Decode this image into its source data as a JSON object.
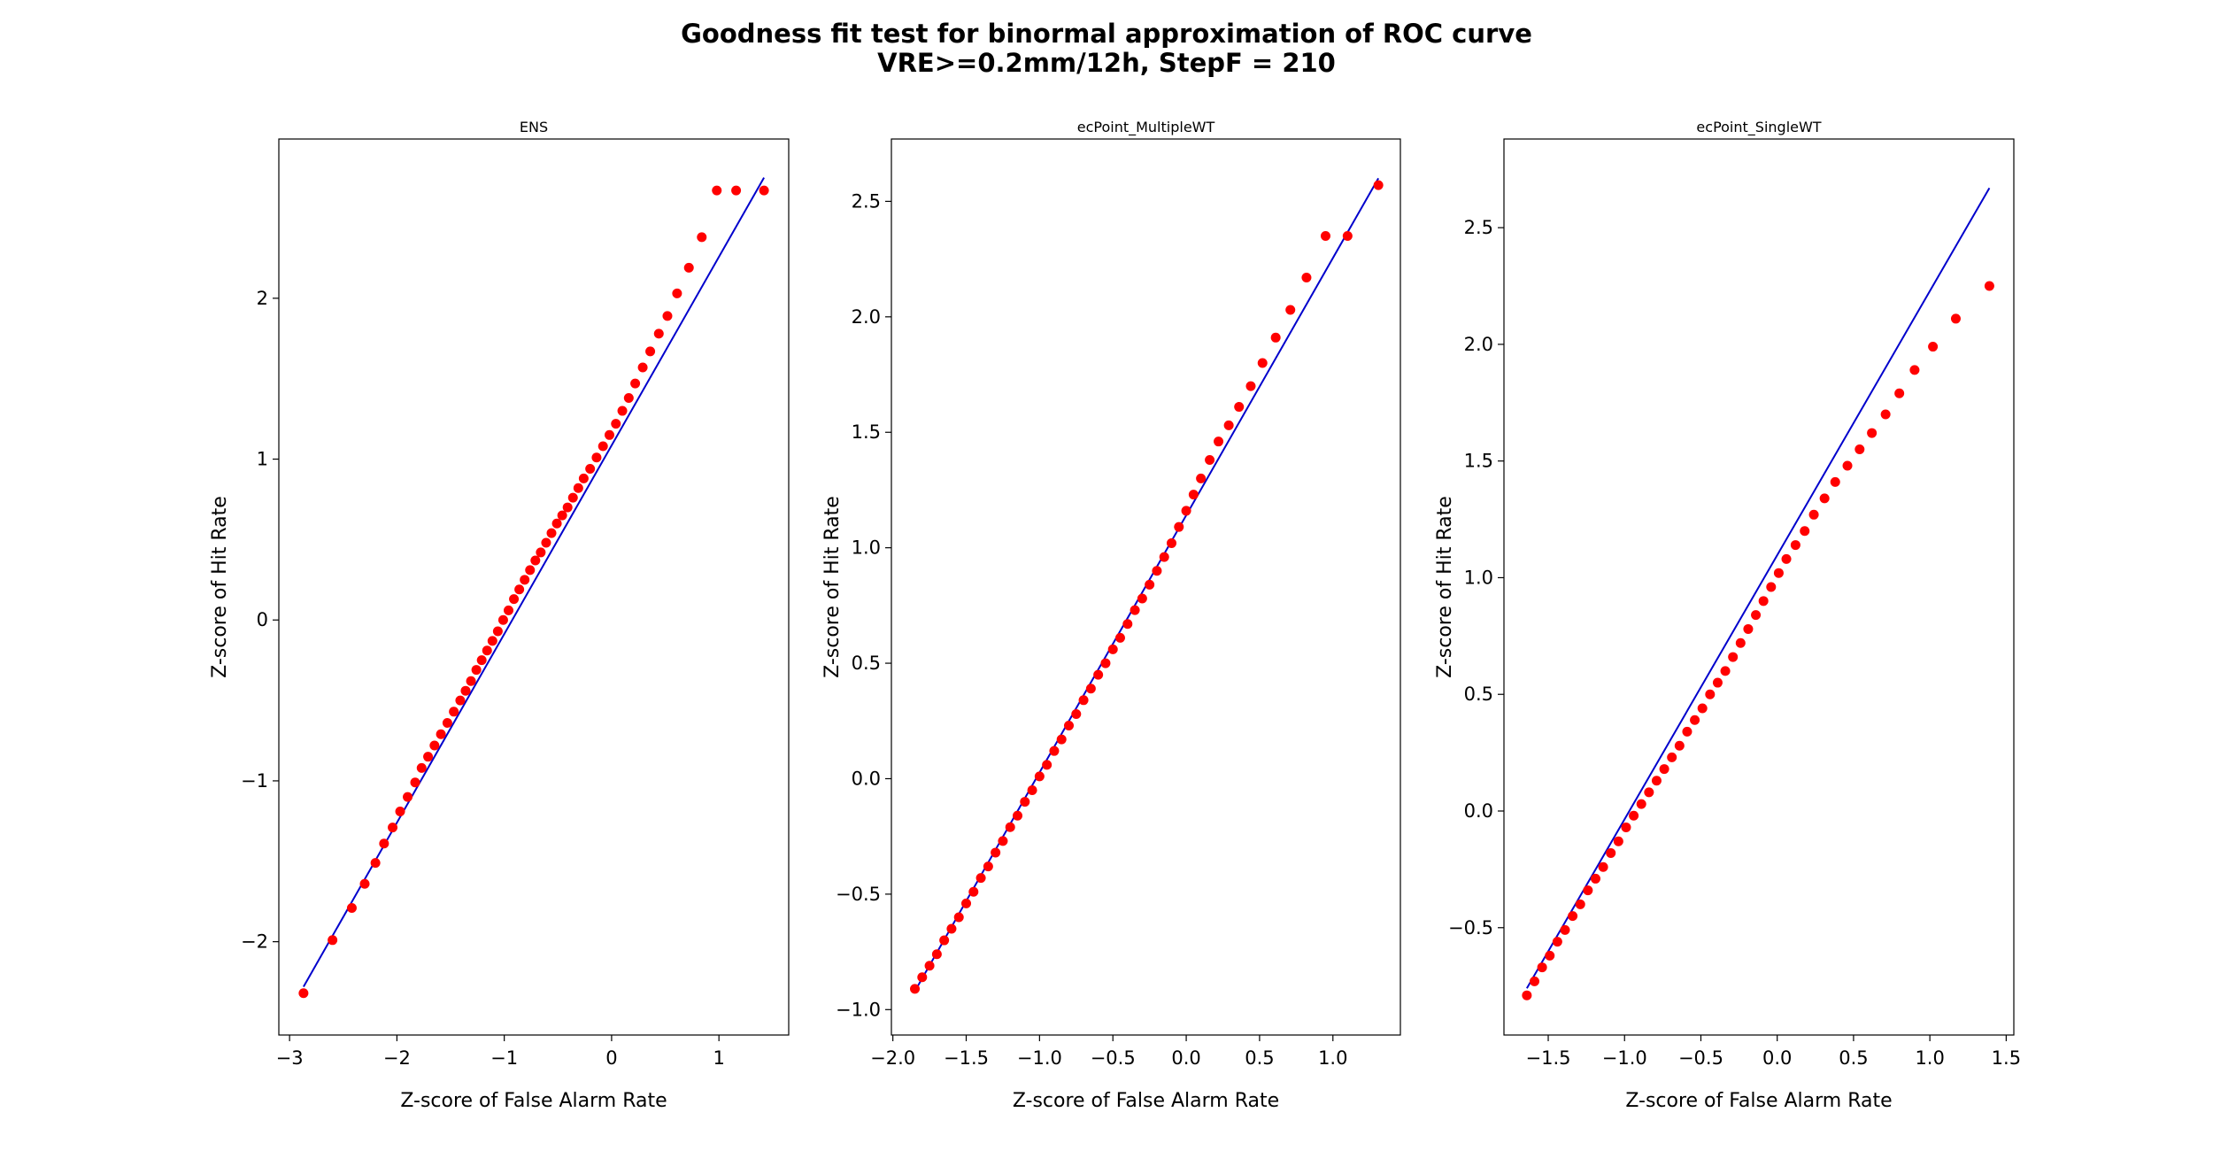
{
  "figure": {
    "title_line1": "Goodness fit test for binormal approximation of ROC curve",
    "title_line2": "VRE>=0.2mm/12h, StepF = 210",
    "line_color": "#0000cc",
    "marker_color": "#ff0000"
  },
  "chart_data": [
    {
      "type": "scatter",
      "title": "ENS",
      "xlabel": "Z-score of False Alarm Rate",
      "ylabel": "Z-score of Hit Rate",
      "xlim": [
        -3.1,
        1.65
      ],
      "ylim": [
        -2.58,
        2.99
      ],
      "xticks": [
        -3,
        -2,
        -1,
        0,
        1
      ],
      "xtick_labels": [
        "−3",
        "−2",
        "−1",
        "0",
        "1"
      ],
      "yticks": [
        -2,
        -1,
        0,
        1,
        2
      ],
      "ytick_labels": [
        "−2",
        "−1",
        "0",
        "1",
        "2"
      ],
      "fit_line": {
        "x": [
          -2.87,
          1.42
        ],
        "y": [
          -2.28,
          2.75
        ]
      },
      "points": {
        "x": [
          -2.87,
          -2.6,
          -2.42,
          -2.3,
          -2.2,
          -2.12,
          -2.04,
          -1.97,
          -1.9,
          -1.83,
          -1.77,
          -1.71,
          -1.65,
          -1.59,
          -1.53,
          -1.47,
          -1.41,
          -1.36,
          -1.31,
          -1.26,
          -1.21,
          -1.16,
          -1.11,
          -1.06,
          -1.01,
          -0.96,
          -0.91,
          -0.86,
          -0.81,
          -0.76,
          -0.71,
          -0.66,
          -0.61,
          -0.56,
          -0.51,
          -0.46,
          -0.41,
          -0.36,
          -0.31,
          -0.26,
          -0.2,
          -0.14,
          -0.08,
          -0.02,
          0.04,
          0.1,
          0.16,
          0.22,
          0.29,
          0.36,
          0.44,
          0.52,
          0.61,
          0.72,
          0.84,
          0.98,
          1.16,
          1.42
        ],
        "y": [
          -2.32,
          -1.99,
          -1.79,
          -1.64,
          -1.51,
          -1.39,
          -1.29,
          -1.19,
          -1.1,
          -1.01,
          -0.92,
          -0.85,
          -0.78,
          -0.71,
          -0.64,
          -0.57,
          -0.5,
          -0.44,
          -0.38,
          -0.31,
          -0.25,
          -0.19,
          -0.13,
          -0.07,
          0.0,
          0.06,
          0.13,
          0.19,
          0.25,
          0.31,
          0.37,
          0.42,
          0.48,
          0.54,
          0.6,
          0.65,
          0.7,
          0.76,
          0.82,
          0.88,
          0.94,
          1.01,
          1.08,
          1.15,
          1.22,
          1.3,
          1.38,
          1.47,
          1.57,
          1.67,
          1.78,
          1.89,
          2.03,
          2.19,
          2.38,
          2.67,
          2.67,
          2.67
        ]
      }
    },
    {
      "type": "scatter",
      "title": "ecPoint_MultipleWT",
      "xlabel": "Z-score of False Alarm Rate",
      "ylabel": "Z-score of Hit Rate",
      "xlim": [
        -2.01,
        1.46
      ],
      "ylim": [
        -1.11,
        2.77
      ],
      "xticks": [
        -2.0,
        -1.5,
        -1.0,
        -0.5,
        0.0,
        0.5,
        1.0
      ],
      "xtick_labels": [
        "−2.0",
        "−1.5",
        "−1.0",
        "−0.5",
        "0.0",
        "0.5",
        "1.0"
      ],
      "yticks": [
        -1.0,
        -0.5,
        0.0,
        0.5,
        1.0,
        1.5,
        2.0,
        2.5
      ],
      "ytick_labels": [
        "−1.0",
        "−0.5",
        "0.0",
        "0.5",
        "1.0",
        "1.5",
        "2.0",
        "2.5"
      ],
      "fit_line": {
        "x": [
          -1.85,
          1.31
        ],
        "y": [
          -0.92,
          2.6
        ]
      },
      "points": {
        "x": [
          -1.85,
          -1.8,
          -1.75,
          -1.7,
          -1.65,
          -1.6,
          -1.55,
          -1.5,
          -1.45,
          -1.4,
          -1.35,
          -1.3,
          -1.25,
          -1.2,
          -1.15,
          -1.1,
          -1.05,
          -1.0,
          -0.95,
          -0.9,
          -0.85,
          -0.8,
          -0.75,
          -0.7,
          -0.65,
          -0.6,
          -0.55,
          -0.5,
          -0.45,
          -0.4,
          -0.35,
          -0.3,
          -0.25,
          -0.2,
          -0.15,
          -0.1,
          -0.05,
          0.0,
          0.05,
          0.1,
          0.16,
          0.22,
          0.29,
          0.36,
          0.44,
          0.52,
          0.61,
          0.71,
          0.82,
          0.95,
          1.1,
          1.31
        ],
        "y": [
          -0.91,
          -0.86,
          -0.81,
          -0.76,
          -0.7,
          -0.65,
          -0.6,
          -0.54,
          -0.49,
          -0.43,
          -0.38,
          -0.32,
          -0.27,
          -0.21,
          -0.16,
          -0.1,
          -0.05,
          0.01,
          0.06,
          0.12,
          0.17,
          0.23,
          0.28,
          0.34,
          0.39,
          0.45,
          0.5,
          0.56,
          0.61,
          0.67,
          0.73,
          0.78,
          0.84,
          0.9,
          0.96,
          1.02,
          1.09,
          1.16,
          1.23,
          1.3,
          1.38,
          1.46,
          1.53,
          1.61,
          1.7,
          1.8,
          1.91,
          2.03,
          2.17,
          2.35,
          2.35,
          2.57
        ]
      }
    },
    {
      "type": "scatter",
      "title": "ecPoint_SingleWT",
      "xlabel": "Z-score of False Alarm Rate",
      "ylabel": "Z-score of Hit Rate",
      "xlim": [
        -1.79,
        1.55
      ],
      "ylim": [
        -0.96,
        2.88
      ],
      "xticks": [
        -1.5,
        -1.0,
        -0.5,
        0.0,
        0.5,
        1.0,
        1.5
      ],
      "xtick_labels": [
        "−1.5",
        "−1.0",
        "−0.5",
        "0.0",
        "0.5",
        "1.0",
        "1.5"
      ],
      "yticks": [
        -0.5,
        0.0,
        0.5,
        1.0,
        1.5,
        2.0,
        2.5
      ],
      "ytick_labels": [
        "−0.5",
        "0.0",
        "0.5",
        "1.0",
        "1.5",
        "2.0",
        "2.5"
      ],
      "fit_line": {
        "x": [
          -1.64,
          1.39
        ],
        "y": [
          -0.76,
          2.67
        ]
      },
      "points": {
        "x": [
          -1.64,
          -1.59,
          -1.54,
          -1.49,
          -1.44,
          -1.39,
          -1.34,
          -1.29,
          -1.24,
          -1.19,
          -1.14,
          -1.09,
          -1.04,
          -0.99,
          -0.94,
          -0.89,
          -0.84,
          -0.79,
          -0.74,
          -0.69,
          -0.64,
          -0.59,
          -0.54,
          -0.49,
          -0.44,
          -0.39,
          -0.34,
          -0.29,
          -0.24,
          -0.19,
          -0.14,
          -0.09,
          -0.04,
          0.01,
          0.06,
          0.12,
          0.18,
          0.24,
          0.31,
          0.38,
          0.46,
          0.54,
          0.62,
          0.71,
          0.8,
          0.9,
          1.02,
          1.17,
          1.39
        ],
        "y": [
          -0.79,
          -0.73,
          -0.67,
          -0.62,
          -0.56,
          -0.51,
          -0.45,
          -0.4,
          -0.34,
          -0.29,
          -0.24,
          -0.18,
          -0.13,
          -0.07,
          -0.02,
          0.03,
          0.08,
          0.13,
          0.18,
          0.23,
          0.28,
          0.34,
          0.39,
          0.44,
          0.5,
          0.55,
          0.6,
          0.66,
          0.72,
          0.78,
          0.84,
          0.9,
          0.96,
          1.02,
          1.08,
          1.14,
          1.2,
          1.27,
          1.34,
          1.41,
          1.48,
          1.55,
          1.62,
          1.7,
          1.79,
          1.89,
          1.99,
          2.11,
          2.25
        ]
      }
    }
  ]
}
